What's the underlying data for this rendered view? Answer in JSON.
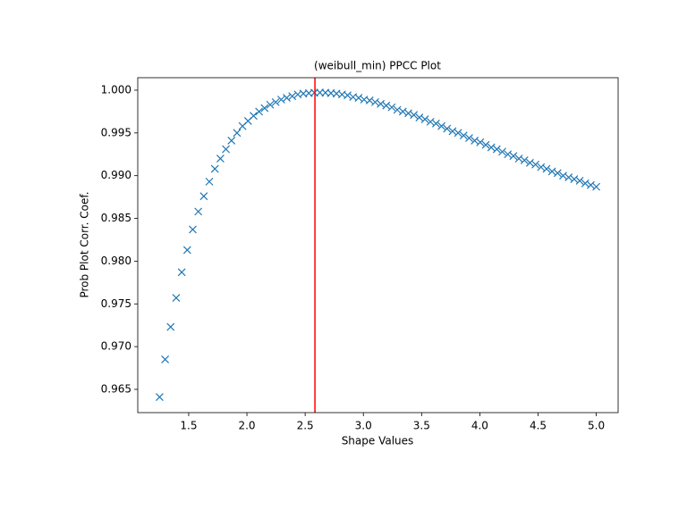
{
  "chart_data": {
    "type": "scatter",
    "title": "(weibull_min) PPCC Plot",
    "x_label": "Shape Values",
    "y_label": "Prob Plot Corr. Coef.",
    "marker": "x",
    "color": "#1f77b4",
    "x": [
      1.25,
      1.2975,
      1.3449,
      1.3924,
      1.4399,
      1.4873,
      1.5348,
      1.5823,
      1.6297,
      1.6772,
      1.7247,
      1.7722,
      1.8196,
      1.8671,
      1.9146,
      1.962,
      2.0095,
      2.057,
      2.1044,
      2.1519,
      2.1994,
      2.2468,
      2.2943,
      2.3418,
      2.3892,
      2.4367,
      2.4842,
      2.5316,
      2.5791,
      2.6266,
      2.6741,
      2.7215,
      2.769,
      2.8165,
      2.8639,
      2.9114,
      2.9589,
      3.0063,
      3.0538,
      3.1013,
      3.1487,
      3.1962,
      3.2437,
      3.2911,
      3.3386,
      3.3861,
      3.4335,
      3.481,
      3.5285,
      3.5759,
      3.6234,
      3.6709,
      3.7184,
      3.7658,
      3.8133,
      3.8608,
      3.9082,
      3.9557,
      4.0032,
      4.0506,
      4.0981,
      4.1456,
      4.193,
      4.2405,
      4.288,
      4.3354,
      4.3829,
      4.4304,
      4.4778,
      4.5253,
      4.5728,
      4.6203,
      4.6677,
      4.7152,
      4.7627,
      4.8101,
      4.8576,
      4.9051,
      4.9525,
      5.0
    ],
    "values": [
      0.9641,
      0.9685,
      0.9723,
      0.9757,
      0.9787,
      0.9813,
      0.9837,
      0.9858,
      0.9876,
      0.9893,
      0.9908,
      0.992,
      0.9931,
      0.9941,
      0.995,
      0.9958,
      0.9964,
      0.997,
      0.9975,
      0.9979,
      0.9983,
      0.9986,
      0.9989,
      0.9991,
      0.9993,
      0.9995,
      0.9996,
      0.99965,
      0.9997,
      0.99972,
      0.9997,
      0.99965,
      0.9996,
      0.9995,
      0.9994,
      0.9992,
      0.9991,
      0.9989,
      0.9988,
      0.9986,
      0.9984,
      0.9982,
      0.998,
      0.9977,
      0.9975,
      0.9973,
      0.9971,
      0.9968,
      0.9966,
      0.9963,
      0.9961,
      0.9958,
      0.9955,
      0.9952,
      0.995,
      0.9947,
      0.9944,
      0.9941,
      0.9939,
      0.9936,
      0.9933,
      0.9931,
      0.9928,
      0.9925,
      0.9923,
      0.992,
      0.9918,
      0.9915,
      0.9913,
      0.991,
      0.9908,
      0.9905,
      0.9903,
      0.99,
      0.9898,
      0.9896,
      0.9894,
      0.9891,
      0.9889,
      0.9887
    ],
    "vline": {
      "x": 2.584,
      "color": "#ff0000"
    },
    "xlim": [
      1.0625,
      5.1875
    ],
    "ylim": [
      0.96228,
      1.00146
    ],
    "xticks": [
      1.5,
      {
        "value": 2,
        "label": "2.0"
      },
      2.5,
      {
        "value": 3,
        "label": "3.0"
      },
      3.5,
      {
        "value": 4,
        "label": "4.0"
      },
      4.5,
      {
        "value": 5,
        "label": "5.0"
      }
    ],
    "yticks": [
      0.965,
      {
        "value": 0.97,
        "label": "0.970"
      },
      0.975,
      {
        "value": 0.98,
        "label": "0.980"
      },
      0.985,
      {
        "value": 0.99,
        "label": "0.990"
      },
      0.995,
      {
        "value": 1,
        "label": "1.000"
      }
    ]
  }
}
